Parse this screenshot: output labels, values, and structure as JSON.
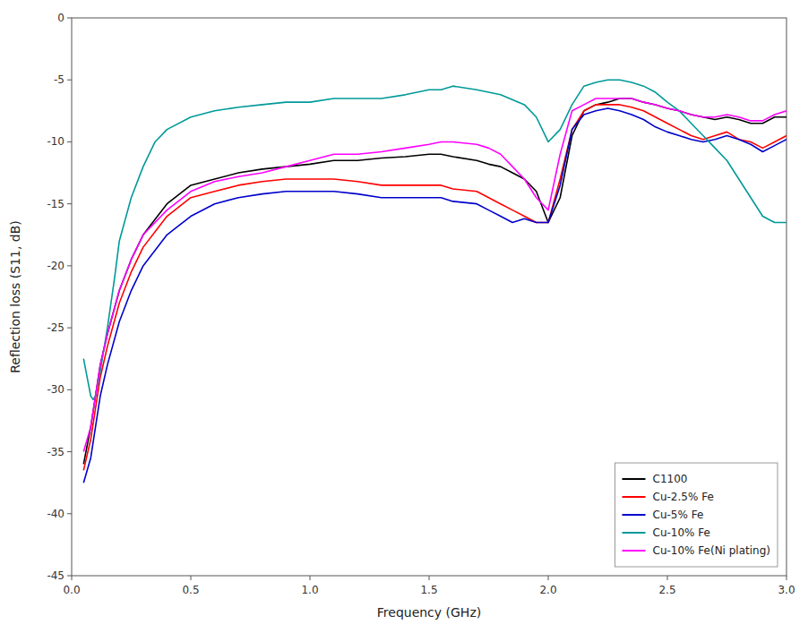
{
  "chart_data": {
    "type": "line",
    "xlabel": "Frequency (GHz)",
    "ylabel": "Reflection loss (S11, dB)",
    "xlim": [
      0,
      3.0
    ],
    "ylim": [
      -45,
      0
    ],
    "xticks": [
      {
        "value": 0.0,
        "label": "0.0"
      },
      0.5,
      {
        "value": 1.0,
        "label": "1.0"
      },
      1.5,
      {
        "value": 2.0,
        "label": "2.0"
      },
      2.5,
      {
        "value": 3.0,
        "label": "3.0"
      }
    ],
    "yticks": [
      0,
      -5,
      -10,
      -15,
      -20,
      -25,
      -30,
      -35,
      -40,
      -45
    ],
    "legend": "lower right",
    "series": [
      {
        "name": "C1100",
        "color": "#000000",
        "x": [
          0.05,
          0.08,
          0.1,
          0.12,
          0.15,
          0.2,
          0.25,
          0.3,
          0.4,
          0.5,
          0.6,
          0.7,
          0.8,
          0.9,
          1.0,
          1.1,
          1.2,
          1.3,
          1.4,
          1.5,
          1.55,
          1.6,
          1.7,
          1.75,
          1.8,
          1.85,
          1.9,
          1.95,
          2.0,
          2.05,
          2.1,
          2.15,
          2.2,
          2.25,
          2.3,
          2.35,
          2.4,
          2.45,
          2.5,
          2.55,
          2.6,
          2.65,
          2.7,
          2.75,
          2.8,
          2.85,
          2.9,
          2.95,
          3.0
        ],
        "values": [
          -36.0,
          -33.0,
          -30.5,
          -28.0,
          -25.5,
          -22.0,
          -19.5,
          -17.5,
          -15.0,
          -13.5,
          -13.0,
          -12.5,
          -12.2,
          -12.0,
          -11.8,
          -11.5,
          -11.5,
          -11.3,
          -11.2,
          -11.0,
          -11.0,
          -11.2,
          -11.5,
          -11.8,
          -12.0,
          -12.5,
          -13.0,
          -14.0,
          -16.5,
          -14.5,
          -9.5,
          -7.5,
          -7.0,
          -6.8,
          -6.5,
          -6.5,
          -6.8,
          -7.0,
          -7.3,
          -7.5,
          -7.8,
          -8.0,
          -8.2,
          -8.0,
          -8.2,
          -8.5,
          -8.5,
          -8.0,
          -8.0
        ]
      },
      {
        "name": "Cu-2.5% Fe",
        "color": "#ff0000",
        "x": [
          0.05,
          0.08,
          0.1,
          0.12,
          0.15,
          0.2,
          0.25,
          0.3,
          0.4,
          0.5,
          0.6,
          0.7,
          0.8,
          0.9,
          1.0,
          1.1,
          1.2,
          1.3,
          1.4,
          1.5,
          1.55,
          1.6,
          1.7,
          1.75,
          1.8,
          1.85,
          1.9,
          1.95,
          2.0,
          2.05,
          2.1,
          2.15,
          2.2,
          2.25,
          2.3,
          2.35,
          2.4,
          2.45,
          2.5,
          2.55,
          2.6,
          2.65,
          2.7,
          2.75,
          2.8,
          2.85,
          2.9,
          2.95,
          3.0
        ],
        "values": [
          -36.5,
          -34.0,
          -31.5,
          -29.0,
          -26.5,
          -23.0,
          -20.5,
          -18.5,
          -16.0,
          -14.5,
          -14.0,
          -13.5,
          -13.2,
          -13.0,
          -13.0,
          -13.0,
          -13.2,
          -13.5,
          -13.5,
          -13.5,
          -13.5,
          -13.8,
          -14.0,
          -14.5,
          -15.0,
          -15.5,
          -16.0,
          -16.5,
          -16.5,
          -13.0,
          -9.0,
          -7.5,
          -7.0,
          -7.0,
          -7.0,
          -7.2,
          -7.5,
          -8.0,
          -8.5,
          -9.0,
          -9.5,
          -9.8,
          -9.5,
          -9.2,
          -9.8,
          -10.0,
          -10.5,
          -10.0,
          -9.5
        ]
      },
      {
        "name": "Cu-5% Fe",
        "color": "#0000cc",
        "x": [
          0.05,
          0.08,
          0.1,
          0.12,
          0.15,
          0.2,
          0.25,
          0.3,
          0.4,
          0.5,
          0.6,
          0.7,
          0.8,
          0.9,
          1.0,
          1.1,
          1.2,
          1.3,
          1.4,
          1.5,
          1.55,
          1.6,
          1.7,
          1.75,
          1.8,
          1.85,
          1.9,
          1.95,
          2.0,
          2.05,
          2.1,
          2.15,
          2.2,
          2.25,
          2.3,
          2.35,
          2.4,
          2.45,
          2.5,
          2.55,
          2.6,
          2.65,
          2.7,
          2.75,
          2.8,
          2.85,
          2.9,
          2.95,
          3.0
        ],
        "values": [
          -37.5,
          -35.5,
          -33.0,
          -30.5,
          -28.0,
          -24.5,
          -22.0,
          -20.0,
          -17.5,
          -16.0,
          -15.0,
          -14.5,
          -14.2,
          -14.0,
          -14.0,
          -14.0,
          -14.2,
          -14.5,
          -14.5,
          -14.5,
          -14.5,
          -14.8,
          -15.0,
          -15.5,
          -16.0,
          -16.5,
          -16.2,
          -16.5,
          -16.5,
          -13.5,
          -9.0,
          -7.8,
          -7.5,
          -7.3,
          -7.5,
          -7.8,
          -8.2,
          -8.8,
          -9.2,
          -9.5,
          -9.8,
          -10.0,
          -9.8,
          -9.5,
          -9.8,
          -10.2,
          -10.8,
          -10.3,
          -9.8
        ]
      },
      {
        "name": "Cu-10% Fe",
        "color": "#009999",
        "x": [
          0.05,
          0.07,
          0.08,
          0.09,
          0.1,
          0.12,
          0.15,
          0.18,
          0.2,
          0.25,
          0.3,
          0.35,
          0.4,
          0.5,
          0.6,
          0.7,
          0.8,
          0.9,
          1.0,
          1.1,
          1.2,
          1.3,
          1.4,
          1.45,
          1.5,
          1.55,
          1.6,
          1.7,
          1.8,
          1.9,
          1.95,
          2.0,
          2.05,
          2.1,
          2.15,
          2.2,
          2.25,
          2.3,
          2.35,
          2.4,
          2.45,
          2.5,
          2.55,
          2.6,
          2.65,
          2.7,
          2.75,
          2.8,
          2.85,
          2.9,
          2.95,
          3.0
        ],
        "values": [
          -27.5,
          -29.5,
          -30.5,
          -30.8,
          -30.5,
          -28.5,
          -25.0,
          -21.0,
          -18.0,
          -14.5,
          -12.0,
          -10.0,
          -9.0,
          -8.0,
          -7.5,
          -7.2,
          -7.0,
          -6.8,
          -6.8,
          -6.5,
          -6.5,
          -6.5,
          -6.2,
          -6.0,
          -5.8,
          -5.8,
          -5.5,
          -5.8,
          -6.2,
          -7.0,
          -8.0,
          -10.0,
          -9.0,
          -7.0,
          -5.5,
          -5.2,
          -5.0,
          -5.0,
          -5.2,
          -5.5,
          -6.0,
          -6.8,
          -7.5,
          -8.5,
          -9.5,
          -10.5,
          -11.5,
          -13.0,
          -14.5,
          -16.0,
          -16.5,
          -16.5
        ]
      },
      {
        "name": "Cu-10% Fe(Ni plating)",
        "color": "#ff00ff",
        "x": [
          0.05,
          0.08,
          0.1,
          0.12,
          0.15,
          0.2,
          0.25,
          0.3,
          0.4,
          0.5,
          0.6,
          0.7,
          0.8,
          0.9,
          1.0,
          1.1,
          1.2,
          1.3,
          1.4,
          1.5,
          1.55,
          1.6,
          1.7,
          1.75,
          1.8,
          1.85,
          1.9,
          1.95,
          2.0,
          2.05,
          2.1,
          2.15,
          2.2,
          2.25,
          2.3,
          2.35,
          2.4,
          2.45,
          2.5,
          2.55,
          2.6,
          2.65,
          2.7,
          2.75,
          2.8,
          2.85,
          2.9,
          2.95,
          3.0
        ],
        "values": [
          -35.0,
          -33.0,
          -30.5,
          -28.0,
          -25.5,
          -22.0,
          -19.5,
          -17.5,
          -15.5,
          -14.0,
          -13.2,
          -12.8,
          -12.5,
          -12.0,
          -11.5,
          -11.0,
          -11.0,
          -10.8,
          -10.5,
          -10.2,
          -10.0,
          -10.0,
          -10.2,
          -10.5,
          -11.0,
          -12.0,
          -13.0,
          -14.5,
          -15.5,
          -11.0,
          -7.5,
          -7.0,
          -6.5,
          -6.5,
          -6.5,
          -6.5,
          -6.8,
          -7.0,
          -7.3,
          -7.5,
          -7.8,
          -8.0,
          -8.0,
          -7.8,
          -8.0,
          -8.3,
          -8.3,
          -7.8,
          -7.5
        ]
      }
    ]
  }
}
